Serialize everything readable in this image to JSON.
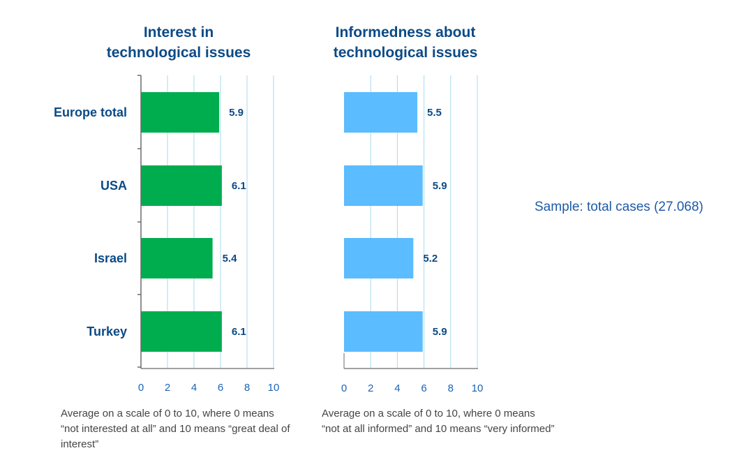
{
  "chart_data": [
    {
      "type": "bar",
      "orientation": "horizontal",
      "title_lines": [
        "Interest in",
        "technological issues"
      ],
      "categories": [
        "Europe total",
        "USA",
        "Israel",
        "Turkey"
      ],
      "values": [
        5.9,
        6.1,
        5.4,
        6.1
      ],
      "value_labels": [
        "5.9",
        "6.1",
        "5.4",
        "6.1"
      ],
      "xlim": [
        0,
        10
      ],
      "ticks": [
        0,
        2,
        4,
        6,
        8,
        10
      ],
      "grid": true,
      "bar_color": "#00ad4e",
      "note": "Average on a scale of 0 to 10, where 0 means “not interested at all” and 10 means “great deal of interest”"
    },
    {
      "type": "bar",
      "orientation": "horizontal",
      "title_lines": [
        "Informedness about",
        "technological issues"
      ],
      "categories": [
        "Europe total",
        "USA",
        "Israel",
        "Turkey"
      ],
      "values": [
        5.5,
        5.9,
        5.2,
        5.9
      ],
      "value_labels": [
        "5.5",
        "5.9",
        "5.2",
        "5.9"
      ],
      "xlim": [
        0,
        10
      ],
      "ticks": [
        0,
        2,
        4,
        6,
        8,
        10
      ],
      "grid": true,
      "bar_color": "#5bbcff",
      "note": "Average on a scale of 0 to 10, where 0 means “not at all informed” and 10 means “very informed”"
    }
  ],
  "sample_text": "Sample: total cases (27.068)",
  "colors": {
    "text": "#0b4a86",
    "tick": "#1b63b6",
    "grid": "#a9d8ee",
    "axis": "#6b6b6b"
  }
}
